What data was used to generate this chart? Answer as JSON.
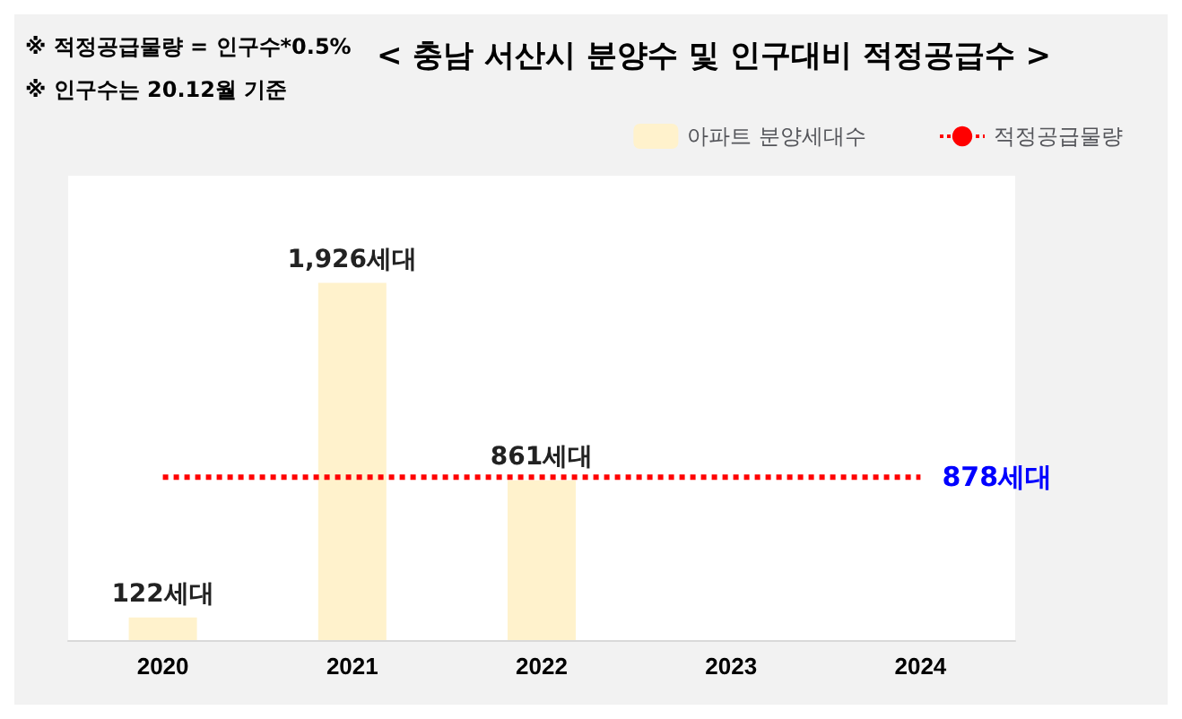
{
  "chart_data": {
    "type": "bar",
    "title": "< 충남 서산시 분양수 및 인구대비 적정공급수 >",
    "annotations": [
      "※ 적정공급물량 = 인구수*0.5%",
      "※ 인구수는 20.12월 기준"
    ],
    "categories": [
      "2020",
      "2021",
      "2022",
      "2023",
      "2024"
    ],
    "series": [
      {
        "name": "아파트 분양세대수",
        "color": "#fff2cc",
        "values": [
          122,
          1926,
          861,
          null,
          null
        ],
        "value_labels": [
          "122세대",
          "1,926세대",
          "861세대",
          null,
          null
        ]
      },
      {
        "name": "적정공급물량",
        "type": "line",
        "color": "#ff0000",
        "line_style": "dotted",
        "marker": "none",
        "values": [
          878,
          878,
          878,
          878,
          878
        ],
        "value_labels": [
          null,
          null,
          null,
          null,
          "878세대"
        ]
      }
    ],
    "legend": "top right",
    "grid": false
  }
}
